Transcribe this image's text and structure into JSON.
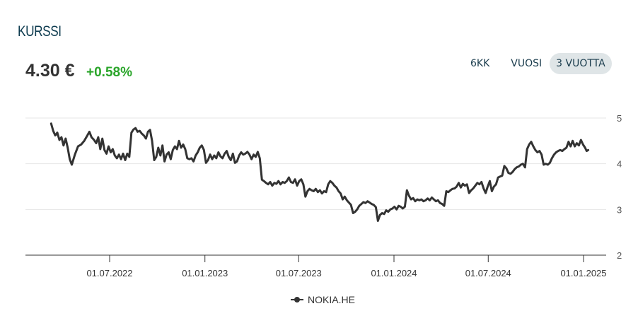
{
  "header": {
    "title": "KURSSI",
    "price": "4.30 €",
    "change": "+0.58%",
    "change_color": "#2aa52a"
  },
  "range_tabs": [
    {
      "label": "6KK",
      "active": false
    },
    {
      "label": "VUOSI",
      "active": false
    },
    {
      "label": "3 VUOTTA",
      "active": true
    }
  ],
  "legend": {
    "label": "NOKIA.HE",
    "icon": "line-with-dot-icon"
  },
  "chart_data": {
    "type": "line",
    "title": "KURSSI",
    "xlabel": "",
    "ylabel": "",
    "ylim": [
      2,
      5
    ],
    "yticks": [
      2,
      3,
      4,
      5
    ],
    "xticks": [
      "01.07.2022",
      "01.01.2023",
      "01.07.2023",
      "01.01.2024",
      "01.07.2024",
      "01.01.2025"
    ],
    "grid": true,
    "legend_position": "bottom",
    "line_color": "#333333",
    "series": [
      {
        "name": "NOKIA.HE",
        "x_px_to_date_note": "values sampled along time axis",
        "points": [
          [
            "2022-03-10",
            4.88
          ],
          [
            "2022-03-14",
            4.72
          ],
          [
            "2022-03-18",
            4.62
          ],
          [
            "2022-03-22",
            4.68
          ],
          [
            "2022-03-26",
            4.52
          ],
          [
            "2022-03-30",
            4.58
          ],
          [
            "2022-04-03",
            4.4
          ],
          [
            "2022-04-07",
            4.55
          ],
          [
            "2022-04-11",
            4.35
          ],
          [
            "2022-04-15",
            4.1
          ],
          [
            "2022-04-19",
            3.98
          ],
          [
            "2022-04-25",
            4.2
          ],
          [
            "2022-05-01",
            4.38
          ],
          [
            "2022-05-07",
            4.42
          ],
          [
            "2022-05-13",
            4.5
          ],
          [
            "2022-05-19",
            4.62
          ],
          [
            "2022-05-23",
            4.7
          ],
          [
            "2022-05-27",
            4.58
          ],
          [
            "2022-06-01",
            4.52
          ],
          [
            "2022-06-05",
            4.45
          ],
          [
            "2022-06-09",
            4.58
          ],
          [
            "2022-06-13",
            4.32
          ],
          [
            "2022-06-17",
            4.55
          ],
          [
            "2022-06-21",
            4.3
          ],
          [
            "2022-06-25",
            4.22
          ],
          [
            "2022-06-29",
            4.38
          ],
          [
            "2022-07-03",
            4.25
          ],
          [
            "2022-07-07",
            4.32
          ],
          [
            "2022-07-11",
            4.18
          ],
          [
            "2022-07-15",
            4.12
          ],
          [
            "2022-07-19",
            4.2
          ],
          [
            "2022-07-23",
            4.1
          ],
          [
            "2022-07-27",
            4.22
          ],
          [
            "2022-07-31",
            4.08
          ],
          [
            "2022-08-04",
            4.22
          ],
          [
            "2022-08-08",
            4.15
          ],
          [
            "2022-08-12",
            4.68
          ],
          [
            "2022-08-16",
            4.75
          ],
          [
            "2022-08-20",
            4.78
          ],
          [
            "2022-08-24",
            4.7
          ],
          [
            "2022-08-28",
            4.72
          ],
          [
            "2022-09-01",
            4.66
          ],
          [
            "2022-09-05",
            4.62
          ],
          [
            "2022-09-09",
            4.55
          ],
          [
            "2022-09-13",
            4.7
          ],
          [
            "2022-09-17",
            4.74
          ],
          [
            "2022-09-21",
            4.5
          ],
          [
            "2022-09-25",
            4.08
          ],
          [
            "2022-09-29",
            4.15
          ],
          [
            "2022-10-03",
            4.35
          ],
          [
            "2022-10-07",
            4.18
          ],
          [
            "2022-10-11",
            4.4
          ],
          [
            "2022-10-15",
            4.05
          ],
          [
            "2022-10-19",
            4.2
          ],
          [
            "2022-10-23",
            4.25
          ],
          [
            "2022-10-27",
            4.1
          ],
          [
            "2022-10-31",
            4.3
          ],
          [
            "2022-11-04",
            4.38
          ],
          [
            "2022-11-08",
            4.32
          ],
          [
            "2022-11-12",
            4.5
          ],
          [
            "2022-11-16",
            4.35
          ],
          [
            "2022-11-20",
            4.42
          ],
          [
            "2022-11-24",
            4.32
          ],
          [
            "2022-11-28",
            4.12
          ],
          [
            "2022-12-02",
            4.1
          ],
          [
            "2022-12-06",
            4.12
          ],
          [
            "2022-12-10",
            4.05
          ],
          [
            "2022-12-14",
            4.18
          ],
          [
            "2022-12-18",
            4.25
          ],
          [
            "2022-12-22",
            4.35
          ],
          [
            "2022-12-26",
            4.4
          ],
          [
            "2022-12-30",
            4.3
          ],
          [
            "2023-01-03",
            4.02
          ],
          [
            "2023-01-07",
            4.08
          ],
          [
            "2023-01-11",
            4.2
          ],
          [
            "2023-01-15",
            4.1
          ],
          [
            "2023-01-19",
            4.18
          ],
          [
            "2023-01-23",
            4.12
          ],
          [
            "2023-01-27",
            4.25
          ],
          [
            "2023-01-31",
            4.16
          ],
          [
            "2023-02-04",
            4.12
          ],
          [
            "2023-02-08",
            4.22
          ],
          [
            "2023-02-12",
            4.28
          ],
          [
            "2023-02-16",
            4.15
          ],
          [
            "2023-02-20",
            4.08
          ],
          [
            "2023-02-24",
            4.22
          ],
          [
            "2023-02-28",
            4.02
          ],
          [
            "2023-03-04",
            4.05
          ],
          [
            "2023-03-08",
            4.18
          ],
          [
            "2023-03-12",
            4.25
          ],
          [
            "2023-03-16",
            4.2
          ],
          [
            "2023-03-20",
            4.22
          ],
          [
            "2023-03-24",
            4.26
          ],
          [
            "2023-03-28",
            4.2
          ],
          [
            "2023-04-01",
            4.1
          ],
          [
            "2023-04-05",
            4.2
          ],
          [
            "2023-04-09",
            4.15
          ],
          [
            "2023-04-13",
            4.26
          ],
          [
            "2023-04-17",
            4.12
          ],
          [
            "2023-04-21",
            3.65
          ],
          [
            "2023-04-25",
            3.62
          ],
          [
            "2023-04-29",
            3.58
          ],
          [
            "2023-05-03",
            3.55
          ],
          [
            "2023-05-07",
            3.6
          ],
          [
            "2023-05-11",
            3.52
          ],
          [
            "2023-05-15",
            3.58
          ],
          [
            "2023-05-19",
            3.56
          ],
          [
            "2023-05-23",
            3.62
          ],
          [
            "2023-05-27",
            3.55
          ],
          [
            "2023-05-31",
            3.6
          ],
          [
            "2023-06-04",
            3.58
          ],
          [
            "2023-06-08",
            3.62
          ],
          [
            "2023-06-12",
            3.7
          ],
          [
            "2023-06-16",
            3.6
          ],
          [
            "2023-06-20",
            3.58
          ],
          [
            "2023-06-24",
            3.66
          ],
          [
            "2023-06-28",
            3.52
          ],
          [
            "2023-07-02",
            3.62
          ],
          [
            "2023-07-06",
            3.66
          ],
          [
            "2023-07-10",
            3.55
          ],
          [
            "2023-07-14",
            3.28
          ],
          [
            "2023-07-18",
            3.4
          ],
          [
            "2023-07-22",
            3.45
          ],
          [
            "2023-07-26",
            3.42
          ],
          [
            "2023-07-30",
            3.4
          ],
          [
            "2023-08-03",
            3.45
          ],
          [
            "2023-08-07",
            3.38
          ],
          [
            "2023-08-11",
            3.42
          ],
          [
            "2023-08-15",
            3.35
          ],
          [
            "2023-08-19",
            3.4
          ],
          [
            "2023-08-23",
            3.38
          ],
          [
            "2023-08-27",
            3.55
          ],
          [
            "2023-08-31",
            3.62
          ],
          [
            "2023-09-04",
            3.58
          ],
          [
            "2023-09-08",
            3.52
          ],
          [
            "2023-09-12",
            3.48
          ],
          [
            "2023-09-16",
            3.4
          ],
          [
            "2023-09-20",
            3.35
          ],
          [
            "2023-09-24",
            3.22
          ],
          [
            "2023-09-28",
            3.28
          ],
          [
            "2023-10-02",
            3.2
          ],
          [
            "2023-10-06",
            3.15
          ],
          [
            "2023-10-10",
            3.1
          ],
          [
            "2023-10-14",
            2.92
          ],
          [
            "2023-10-18",
            2.95
          ],
          [
            "2023-10-22",
            3.0
          ],
          [
            "2023-10-26",
            3.08
          ],
          [
            "2023-10-30",
            3.12
          ],
          [
            "2023-11-03",
            3.16
          ],
          [
            "2023-11-07",
            3.14
          ],
          [
            "2023-11-11",
            3.18
          ],
          [
            "2023-11-15",
            3.15
          ],
          [
            "2023-11-19",
            3.12
          ],
          [
            "2023-11-23",
            3.1
          ],
          [
            "2023-11-27",
            3.05
          ],
          [
            "2023-12-01",
            2.75
          ],
          [
            "2023-12-05",
            2.88
          ],
          [
            "2023-12-09",
            2.92
          ],
          [
            "2023-12-13",
            2.9
          ],
          [
            "2023-12-17",
            2.98
          ],
          [
            "2023-12-21",
            2.95
          ],
          [
            "2023-12-25",
            3.0
          ],
          [
            "2023-12-29",
            3.02
          ],
          [
            "2024-01-02",
            3.06
          ],
          [
            "2024-01-06",
            3.0
          ],
          [
            "2024-01-10",
            3.08
          ],
          [
            "2024-01-14",
            3.06
          ],
          [
            "2024-01-18",
            3.02
          ],
          [
            "2024-01-22",
            3.06
          ],
          [
            "2024-01-26",
            3.42
          ],
          [
            "2024-01-30",
            3.3
          ],
          [
            "2024-02-03",
            3.22
          ],
          [
            "2024-02-07",
            3.25
          ],
          [
            "2024-02-11",
            3.18
          ],
          [
            "2024-02-15",
            3.22
          ],
          [
            "2024-02-19",
            3.2
          ],
          [
            "2024-02-23",
            3.22
          ],
          [
            "2024-02-27",
            3.18
          ],
          [
            "2024-03-02",
            3.2
          ],
          [
            "2024-03-06",
            3.24
          ],
          [
            "2024-03-10",
            3.2
          ],
          [
            "2024-03-14",
            3.26
          ],
          [
            "2024-03-18",
            3.22
          ],
          [
            "2024-03-22",
            3.18
          ],
          [
            "2024-03-26",
            3.2
          ],
          [
            "2024-03-30",
            3.14
          ],
          [
            "2024-04-03",
            3.12
          ],
          [
            "2024-04-07",
            3.08
          ],
          [
            "2024-04-11",
            3.4
          ],
          [
            "2024-04-15",
            3.38
          ],
          [
            "2024-04-19",
            3.42
          ],
          [
            "2024-04-23",
            3.45
          ],
          [
            "2024-04-27",
            3.46
          ],
          [
            "2024-05-01",
            3.5
          ],
          [
            "2024-05-05",
            3.58
          ],
          [
            "2024-05-09",
            3.48
          ],
          [
            "2024-05-13",
            3.56
          ],
          [
            "2024-05-17",
            3.52
          ],
          [
            "2024-05-21",
            3.55
          ],
          [
            "2024-05-25",
            3.36
          ],
          [
            "2024-05-29",
            3.42
          ],
          [
            "2024-06-02",
            3.46
          ],
          [
            "2024-06-06",
            3.52
          ],
          [
            "2024-06-10",
            3.58
          ],
          [
            "2024-06-14",
            3.55
          ],
          [
            "2024-06-18",
            3.6
          ],
          [
            "2024-06-22",
            3.46
          ],
          [
            "2024-06-26",
            3.36
          ],
          [
            "2024-06-30",
            3.5
          ],
          [
            "2024-07-04",
            3.62
          ],
          [
            "2024-07-08",
            3.4
          ],
          [
            "2024-07-12",
            3.5
          ],
          [
            "2024-07-16",
            3.55
          ],
          [
            "2024-07-20",
            3.7
          ],
          [
            "2024-07-24",
            3.72
          ],
          [
            "2024-07-28",
            3.74
          ],
          [
            "2024-08-01",
            3.95
          ],
          [
            "2024-08-05",
            3.9
          ],
          [
            "2024-08-09",
            3.8
          ],
          [
            "2024-08-13",
            3.78
          ],
          [
            "2024-08-17",
            3.82
          ],
          [
            "2024-08-21",
            3.88
          ],
          [
            "2024-08-25",
            3.92
          ],
          [
            "2024-08-29",
            3.94
          ],
          [
            "2024-09-02",
            3.98
          ],
          [
            "2024-09-06",
            4.0
          ],
          [
            "2024-09-10",
            3.92
          ],
          [
            "2024-09-14",
            4.32
          ],
          [
            "2024-09-18",
            4.42
          ],
          [
            "2024-09-22",
            4.48
          ],
          [
            "2024-09-26",
            4.38
          ],
          [
            "2024-09-30",
            4.3
          ],
          [
            "2024-10-04",
            4.25
          ],
          [
            "2024-10-08",
            4.28
          ],
          [
            "2024-10-12",
            4.2
          ],
          [
            "2024-10-16",
            3.98
          ],
          [
            "2024-10-20",
            4.0
          ],
          [
            "2024-10-24",
            3.98
          ],
          [
            "2024-10-28",
            4.02
          ],
          [
            "2024-11-01",
            4.12
          ],
          [
            "2024-11-05",
            4.2
          ],
          [
            "2024-11-09",
            4.25
          ],
          [
            "2024-11-13",
            4.28
          ],
          [
            "2024-11-17",
            4.3
          ],
          [
            "2024-11-21",
            4.28
          ],
          [
            "2024-11-25",
            4.32
          ],
          [
            "2024-11-29",
            4.35
          ],
          [
            "2024-12-03",
            4.48
          ],
          [
            "2024-12-07",
            4.38
          ],
          [
            "2024-12-11",
            4.5
          ],
          [
            "2024-12-15",
            4.38
          ],
          [
            "2024-12-19",
            4.45
          ],
          [
            "2024-12-23",
            4.4
          ],
          [
            "2024-12-27",
            4.52
          ],
          [
            "2024-12-31",
            4.42
          ],
          [
            "2025-01-04",
            4.35
          ],
          [
            "2025-01-07",
            4.28
          ],
          [
            "2025-01-10",
            4.3
          ]
        ]
      }
    ]
  }
}
